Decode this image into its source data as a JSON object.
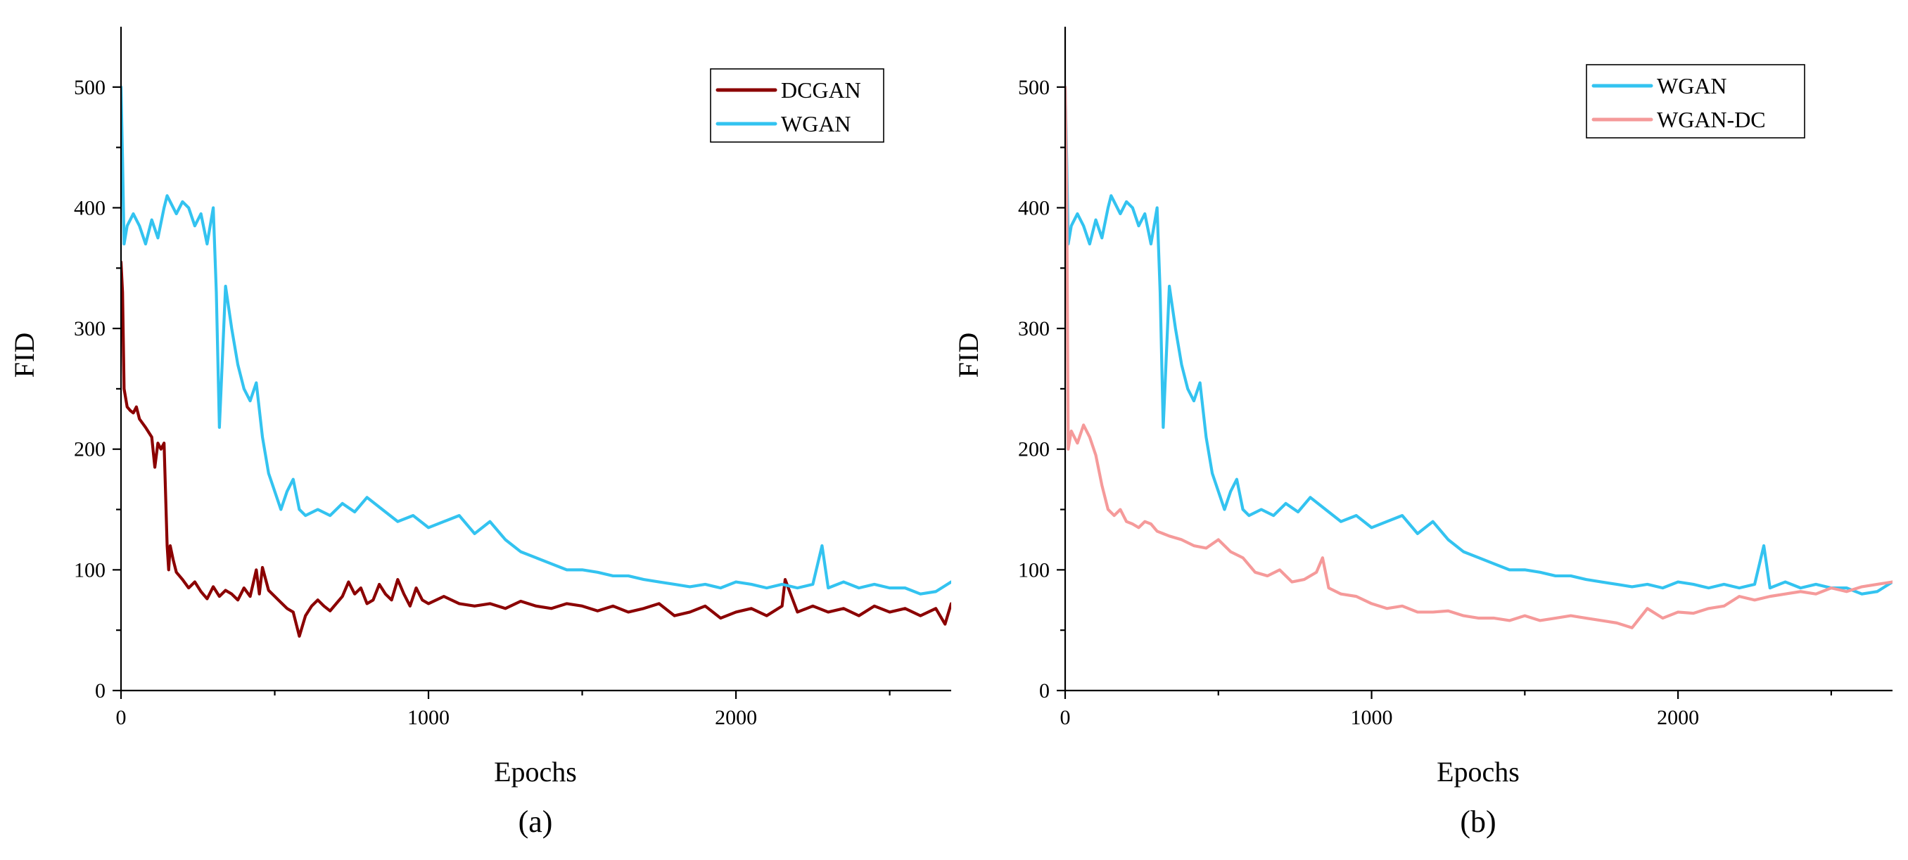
{
  "chart_data": [
    {
      "id": "a",
      "type": "line",
      "caption": "(a)",
      "xlabel": "Epochs",
      "ylabel": "FID",
      "xlim": [
        0,
        2700
      ],
      "ylim": [
        0,
        550
      ],
      "xticks": [
        0,
        1000,
        2000
      ],
      "yticks": [
        0,
        100,
        200,
        300,
        400,
        500
      ],
      "legend_position": "top-right",
      "series": [
        {
          "name": "DCGAN",
          "color": "#8b0000",
          "x": [
            0,
            5,
            10,
            20,
            30,
            40,
            50,
            60,
            80,
            100,
            110,
            120,
            130,
            140,
            150,
            155,
            160,
            170,
            180,
            200,
            220,
            240,
            260,
            280,
            300,
            320,
            340,
            360,
            380,
            400,
            420,
            440,
            450,
            460,
            480,
            500,
            520,
            540,
            560,
            580,
            600,
            620,
            640,
            660,
            680,
            700,
            720,
            740,
            760,
            780,
            800,
            820,
            840,
            860,
            880,
            900,
            920,
            940,
            960,
            980,
            1000,
            1050,
            1100,
            1150,
            1200,
            1250,
            1300,
            1350,
            1400,
            1450,
            1500,
            1550,
            1600,
            1650,
            1700,
            1750,
            1800,
            1850,
            1900,
            1950,
            2000,
            2050,
            2100,
            2150,
            2160,
            2200,
            2250,
            2300,
            2350,
            2400,
            2450,
            2500,
            2550,
            2600,
            2650,
            2680,
            2700
          ],
          "y": [
            355,
            330,
            250,
            235,
            232,
            230,
            235,
            225,
            218,
            210,
            185,
            205,
            200,
            205,
            120,
            100,
            120,
            108,
            98,
            92,
            85,
            90,
            82,
            76,
            86,
            78,
            83,
            80,
            75,
            85,
            78,
            100,
            80,
            102,
            83,
            78,
            73,
            68,
            65,
            45,
            62,
            70,
            75,
            70,
            66,
            72,
            78,
            90,
            80,
            85,
            72,
            75,
            88,
            80,
            75,
            92,
            80,
            70,
            85,
            75,
            72,
            78,
            72,
            70,
            72,
            68,
            74,
            70,
            68,
            72,
            70,
            66,
            70,
            65,
            68,
            72,
            62,
            65,
            70,
            60,
            65,
            68,
            62,
            70,
            92,
            65,
            70,
            65,
            68,
            62,
            70,
            65,
            68,
            62,
            68,
            55,
            72
          ]
        },
        {
          "name": "WGAN",
          "color": "#33c3f0",
          "x": [
            0,
            5,
            10,
            20,
            40,
            60,
            80,
            100,
            120,
            140,
            150,
            160,
            180,
            200,
            220,
            240,
            260,
            280,
            300,
            310,
            320,
            340,
            360,
            380,
            400,
            420,
            440,
            460,
            480,
            500,
            520,
            540,
            560,
            580,
            600,
            640,
            680,
            720,
            760,
            800,
            850,
            900,
            950,
            1000,
            1050,
            1100,
            1150,
            1200,
            1250,
            1300,
            1350,
            1400,
            1450,
            1500,
            1550,
            1600,
            1650,
            1700,
            1750,
            1800,
            1850,
            1900,
            1950,
            2000,
            2050,
            2100,
            2150,
            2200,
            2250,
            2280,
            2300,
            2350,
            2400,
            2450,
            2500,
            2550,
            2600,
            2650,
            2700
          ],
          "y": [
            500,
            440,
            370,
            385,
            395,
            385,
            370,
            390,
            375,
            400,
            410,
            405,
            395,
            405,
            400,
            385,
            395,
            370,
            400,
            330,
            218,
            335,
            300,
            270,
            250,
            240,
            255,
            210,
            180,
            165,
            150,
            165,
            175,
            150,
            145,
            150,
            145,
            155,
            148,
            160,
            150,
            140,
            145,
            135,
            140,
            145,
            130,
            140,
            125,
            115,
            110,
            105,
            100,
            100,
            98,
            95,
            95,
            92,
            90,
            88,
            86,
            88,
            85,
            90,
            88,
            85,
            88,
            85,
            88,
            120,
            85,
            90,
            85,
            88,
            85,
            85,
            80,
            82,
            90
          ]
        }
      ]
    },
    {
      "id": "b",
      "type": "line",
      "caption": "(b)",
      "xlabel": "Epochs",
      "ylabel": "FID",
      "xlim": [
        0,
        2700
      ],
      "ylim": [
        0,
        550
      ],
      "xticks": [
        0,
        1000,
        2000
      ],
      "yticks": [
        0,
        100,
        200,
        300,
        400,
        500
      ],
      "legend_position": "top-right",
      "series": [
        {
          "name": "WGAN",
          "color": "#33c3f0",
          "x": [
            0,
            5,
            10,
            20,
            40,
            60,
            80,
            100,
            120,
            140,
            150,
            160,
            180,
            200,
            220,
            240,
            260,
            280,
            300,
            310,
            320,
            340,
            360,
            380,
            400,
            420,
            440,
            460,
            480,
            500,
            520,
            540,
            560,
            580,
            600,
            640,
            680,
            720,
            760,
            800,
            850,
            900,
            950,
            1000,
            1050,
            1100,
            1150,
            1200,
            1250,
            1300,
            1350,
            1400,
            1450,
            1500,
            1550,
            1600,
            1650,
            1700,
            1750,
            1800,
            1850,
            1900,
            1950,
            2000,
            2050,
            2100,
            2150,
            2200,
            2250,
            2280,
            2300,
            2350,
            2400,
            2450,
            2500,
            2550,
            2600,
            2650,
            2700
          ],
          "y": [
            500,
            440,
            370,
            385,
            395,
            385,
            370,
            390,
            375,
            400,
            410,
            405,
            395,
            405,
            400,
            385,
            395,
            370,
            400,
            330,
            218,
            335,
            300,
            270,
            250,
            240,
            255,
            210,
            180,
            165,
            150,
            165,
            175,
            150,
            145,
            150,
            145,
            155,
            148,
            160,
            150,
            140,
            145,
            135,
            140,
            145,
            130,
            140,
            125,
            115,
            110,
            105,
            100,
            100,
            98,
            95,
            95,
            92,
            90,
            88,
            86,
            88,
            85,
            90,
            88,
            85,
            88,
            85,
            88,
            120,
            85,
            90,
            85,
            88,
            85,
            85,
            80,
            82,
            90
          ]
        },
        {
          "name": "WGAN-DC",
          "color": "#f59a9a",
          "x": [
            0,
            5,
            10,
            20,
            40,
            60,
            80,
            100,
            120,
            140,
            160,
            180,
            200,
            220,
            240,
            260,
            280,
            300,
            340,
            380,
            420,
            460,
            500,
            540,
            580,
            620,
            660,
            700,
            740,
            780,
            820,
            840,
            860,
            900,
            950,
            1000,
            1050,
            1100,
            1150,
            1200,
            1250,
            1300,
            1350,
            1400,
            1450,
            1500,
            1550,
            1600,
            1650,
            1700,
            1750,
            1800,
            1850,
            1900,
            1950,
            2000,
            2050,
            2100,
            2150,
            2200,
            2250,
            2300,
            2350,
            2400,
            2450,
            2500,
            2550,
            2600,
            2650,
            2700
          ],
          "y": [
            500,
            420,
            200,
            215,
            205,
            220,
            210,
            195,
            170,
            150,
            145,
            150,
            140,
            138,
            135,
            140,
            138,
            132,
            128,
            125,
            120,
            118,
            125,
            115,
            110,
            98,
            95,
            100,
            90,
            92,
            98,
            110,
            85,
            80,
            78,
            72,
            68,
            70,
            65,
            65,
            66,
            62,
            60,
            60,
            58,
            62,
            58,
            60,
            62,
            60,
            58,
            56,
            52,
            68,
            60,
            65,
            64,
            68,
            70,
            78,
            75,
            78,
            80,
            82,
            80,
            85,
            82,
            86,
            88,
            90
          ]
        }
      ]
    }
  ]
}
